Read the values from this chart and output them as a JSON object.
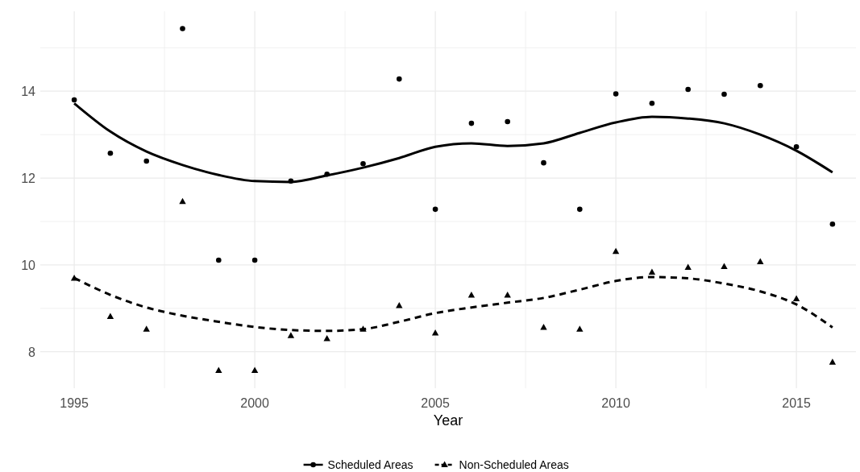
{
  "chart_data": {
    "type": "scatter",
    "xlabel": "Year",
    "x": [
      1995,
      1996,
      1997,
      1998,
      1999,
      2000,
      2001,
      2002,
      2003,
      2004,
      2005,
      2006,
      2007,
      2008,
      2009,
      2010,
      2011,
      2012,
      2013,
      2014,
      2015,
      2016
    ],
    "series": [
      {
        "name": "Scheduled Areas",
        "marker": "circle",
        "line_style": "solid",
        "color": "#000000",
        "values": [
          13.8,
          12.57,
          12.39,
          15.44,
          10.11,
          10.11,
          11.93,
          12.09,
          12.33,
          14.28,
          11.28,
          13.26,
          13.3,
          12.35,
          11.28,
          13.94,
          13.72,
          14.04,
          13.93,
          14.13,
          12.72,
          10.94
        ]
      },
      {
        "name": "Non-Scheduled Areas",
        "marker": "triangle",
        "line_style": "dashed",
        "color": "#000000",
        "values": [
          9.69,
          8.81,
          8.52,
          11.46,
          7.57,
          7.57,
          8.37,
          8.3,
          8.52,
          9.06,
          8.43,
          9.3,
          9.3,
          8.56,
          8.52,
          10.31,
          9.83,
          9.94,
          9.96,
          10.07,
          9.22,
          7.76
        ]
      },
      {
        "type": "line",
        "line_style": "solid",
        "color": "#000000",
        "values": [
          13.72,
          13.07,
          12.61,
          12.3,
          12.07,
          11.93,
          11.91,
          12.06,
          12.24,
          12.46,
          12.72,
          12.8,
          12.74,
          12.8,
          13.04,
          13.28,
          13.41,
          13.37,
          13.26,
          13.0,
          12.63,
          12.13
        ]
      },
      {
        "type": "line",
        "line_style": "dashed",
        "color": "#000000",
        "values": [
          9.7,
          9.31,
          9.02,
          8.83,
          8.69,
          8.57,
          8.5,
          8.48,
          8.52,
          8.69,
          8.89,
          9.02,
          9.13,
          9.24,
          9.43,
          9.63,
          9.72,
          9.69,
          9.57,
          9.39,
          9.09,
          8.56
        ]
      }
    ],
    "xlim": [
      1994.06,
      2016.65
    ],
    "xticks": [
      1995,
      {
        "value": 1997.5,
        "label": null
      },
      2000,
      {
        "value": 2002.5,
        "label": null
      },
      2005,
      {
        "value": 2007.5,
        "label": null
      },
      2010,
      {
        "value": 2012.5,
        "label": null
      },
      2015
    ],
    "ylim": [
      7.16,
      15.84
    ],
    "yticks": [
      8,
      {
        "value": 9,
        "label": null
      },
      10,
      {
        "value": 11,
        "label": null
      },
      12,
      {
        "value": 13,
        "label": null
      },
      14,
      {
        "value": 15,
        "label": null
      }
    ],
    "grid": true,
    "legend": "bottom"
  }
}
